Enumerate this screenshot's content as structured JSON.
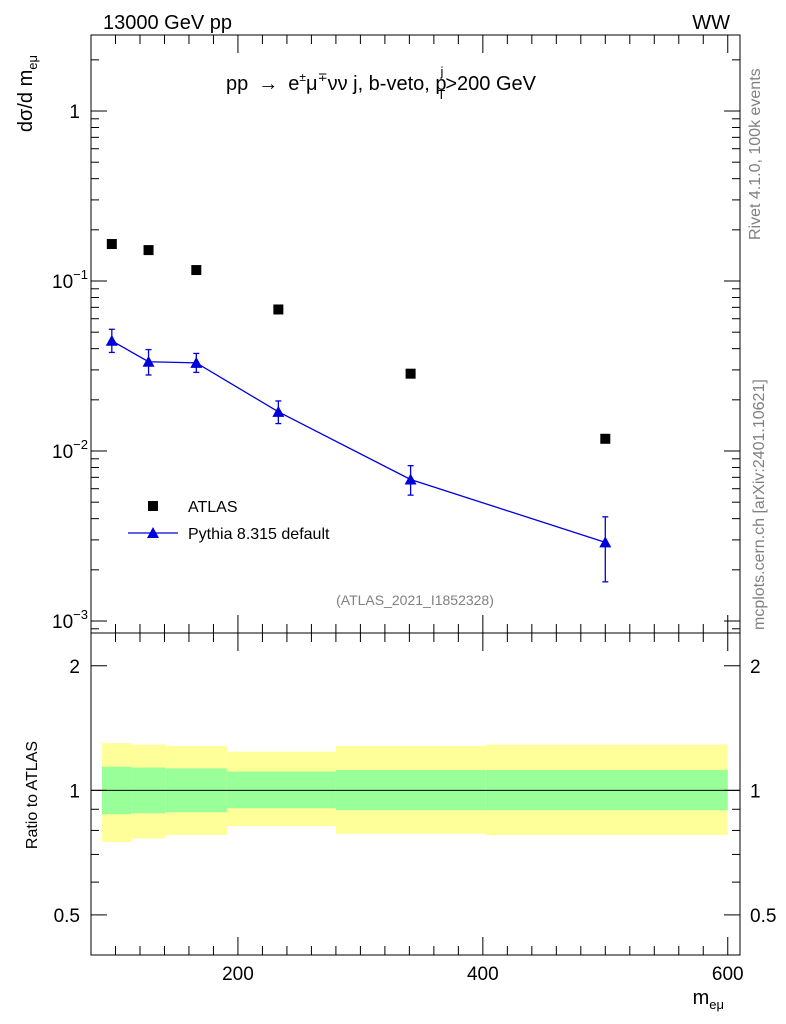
{
  "header": {
    "left": "13000 GeV pp",
    "right": "WW"
  },
  "title": {
    "main": "pp",
    "arrow": "→",
    "e": "e",
    "pm": "±",
    "mu": "μ",
    "mp": "∓",
    "nunu": "νν j, b-veto, p",
    "sup_j": "j",
    "sub_T": "T",
    "cut": ">200 GeV"
  },
  "side_labels": {
    "rivet": "Rivet 4.1.0,  100k events",
    "mcplots": "mcplots.cern.ch [arXiv:2401.10621]"
  },
  "analysis_id": "(ATLAS_2021_I1852328)",
  "axes": {
    "ylabel_main": "dσ/d m",
    "ylabel_main_sub": "eμ",
    "ylabel_ratio": "Ratio to ATLAS",
    "xlabel": "m",
    "xlabel_sub": "eμ",
    "main_ticks": [
      {
        "value": 1,
        "base": "1",
        "exp": ""
      },
      {
        "value": 0.1,
        "base": "10",
        "exp": "−1"
      },
      {
        "value": 0.01,
        "base": "10",
        "exp": "−2"
      },
      {
        "value": 0.001,
        "base": "10",
        "exp": "−3"
      }
    ],
    "ratio_ticks": [
      "0.5",
      "1",
      "2"
    ],
    "x_ticks": [
      "200",
      "400",
      "600"
    ]
  },
  "legend": {
    "atlas": "ATLAS",
    "pythia": "Pythia 8.315 default"
  },
  "colors": {
    "pythia": "#0000dd",
    "band_inner": "#99ff99",
    "band_outer": "#ffff99",
    "data": "#000000"
  },
  "chart_data": {
    "type": "scatter",
    "x_range": [
      80,
      610
    ],
    "y_range_main": [
      0.00085,
      2.8
    ],
    "y_range_ratio": [
      0.4,
      2.4
    ],
    "y_scale": "log",
    "series": [
      {
        "name": "ATLAS",
        "x": [
          97,
          127,
          166,
          233,
          341,
          500
        ],
        "y": [
          0.165,
          0.152,
          0.116,
          0.068,
          0.0285,
          0.0118
        ]
      },
      {
        "name": "Pythia 8.315 default",
        "x": [
          97,
          127,
          166,
          233,
          341,
          500
        ],
        "y": [
          0.0445,
          0.0335,
          0.033,
          0.017,
          0.0068,
          0.0029
        ],
        "err_low": [
          0.0065,
          0.0055,
          0.004,
          0.0025,
          0.0013,
          0.0012
        ],
        "err_high": [
          0.0075,
          0.006,
          0.0045,
          0.0027,
          0.0014,
          0.0012
        ]
      }
    ],
    "ratio_bands": [
      {
        "x0": 89,
        "x1": 113,
        "inner_lo": 0.875,
        "inner_hi": 1.14,
        "outer_lo": 0.75,
        "outer_hi": 1.3
      },
      {
        "x0": 113,
        "x1": 141,
        "inner_lo": 0.88,
        "inner_hi": 1.135,
        "outer_lo": 0.765,
        "outer_hi": 1.29
      },
      {
        "x0": 141,
        "x1": 191,
        "inner_lo": 0.885,
        "inner_hi": 1.13,
        "outer_lo": 0.78,
        "outer_hi": 1.28
      },
      {
        "x0": 191,
        "x1": 280,
        "inner_lo": 0.905,
        "inner_hi": 1.11,
        "outer_lo": 0.82,
        "outer_hi": 1.24
      },
      {
        "x0": 280,
        "x1": 402,
        "inner_lo": 0.895,
        "inner_hi": 1.12,
        "outer_lo": 0.785,
        "outer_hi": 1.28
      },
      {
        "x0": 402,
        "x1": 600,
        "inner_lo": 0.895,
        "inner_hi": 1.12,
        "outer_lo": 0.78,
        "outer_hi": 1.29
      }
    ]
  }
}
